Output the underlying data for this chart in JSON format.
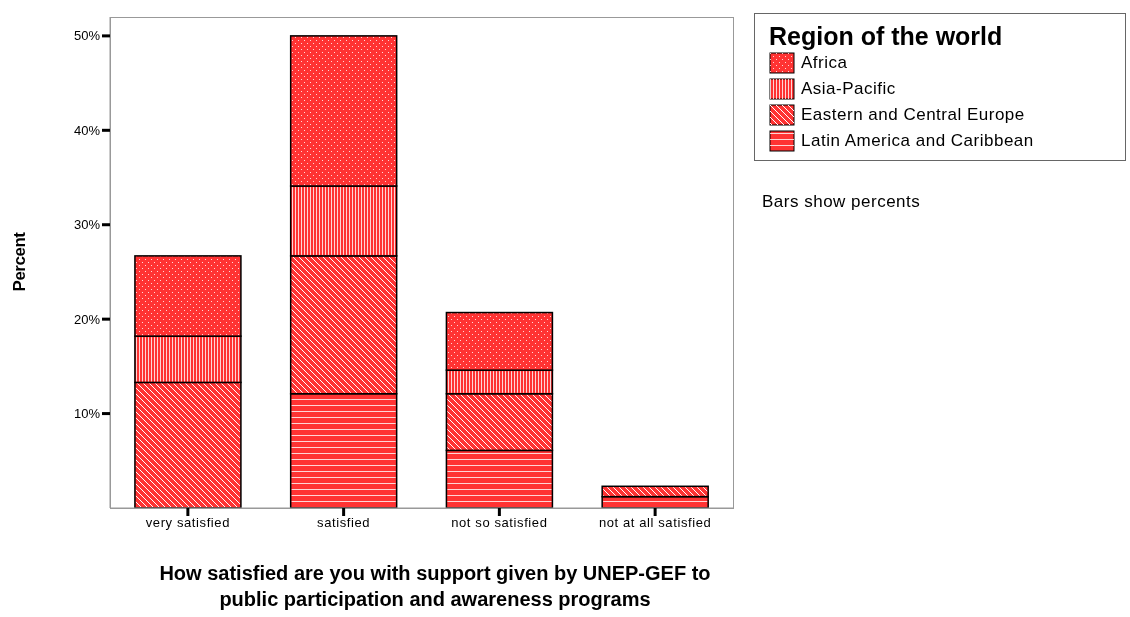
{
  "chart_data": {
    "type": "bar",
    "stacked": true,
    "xlabel": "How satisfied are you with support given by UNEP-GEF to public participation and awareness programs",
    "ylabel": "Percent",
    "legend_title": "Region of the world",
    "annotations": [
      "Bars show percents"
    ],
    "categories": [
      "very satisfied",
      "satisfied",
      "not so satisfied",
      "not at all satisfied"
    ],
    "series": [
      {
        "name": "Latin America and Caribbean",
        "color": "#ff3333",
        "values": [
          0,
          12.1,
          6.1,
          1.2
        ]
      },
      {
        "name": "Eastern and Central Europe",
        "color": "#ff3333",
        "values": [
          13.3,
          14.6,
          6.0,
          1.1
        ]
      },
      {
        "name": "Asia-Pacific",
        "color": "#ff3333",
        "values": [
          4.9,
          7.4,
          2.5,
          0
        ]
      },
      {
        "name": "Africa",
        "color": "#ff3333",
        "values": [
          8.5,
          15.9,
          6.1,
          0
        ]
      }
    ],
    "ylim": [
      0,
      52
    ],
    "yticks": [
      {
        "value": 10,
        "label": "10%"
      },
      {
        "value": 20,
        "label": "20%"
      },
      {
        "value": 30,
        "label": "30%"
      },
      {
        "value": 40,
        "label": "40%"
      },
      {
        "value": 50,
        "label": "50%"
      }
    ],
    "grid": false,
    "legend": "top right"
  }
}
